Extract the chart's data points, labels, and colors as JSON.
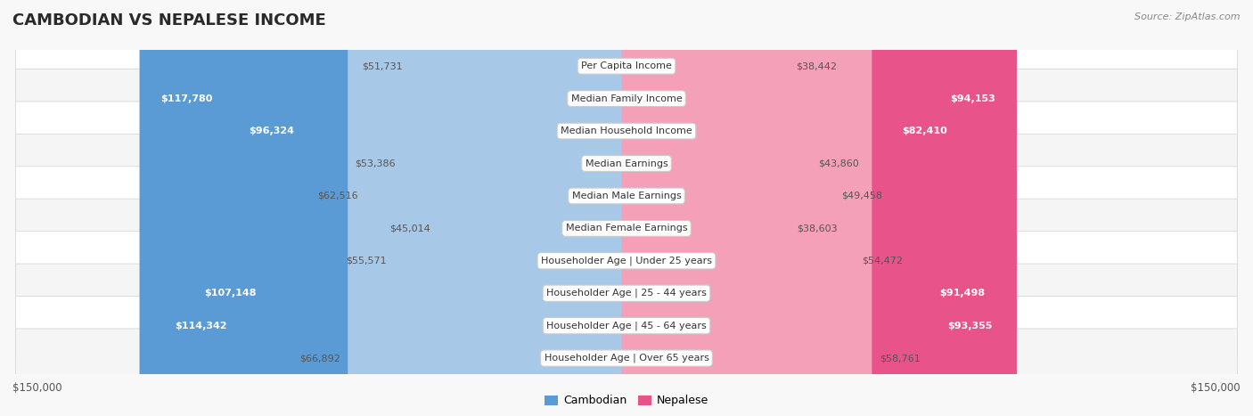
{
  "title": "CAMBODIAN VS NEPALESE INCOME",
  "source": "Source: ZipAtlas.com",
  "max_value": 150000,
  "categories": [
    "Per Capita Income",
    "Median Family Income",
    "Median Household Income",
    "Median Earnings",
    "Median Male Earnings",
    "Median Female Earnings",
    "Householder Age | Under 25 years",
    "Householder Age | 25 - 44 years",
    "Householder Age | 45 - 64 years",
    "Householder Age | Over 65 years"
  ],
  "cambodian_values": [
    51731,
    117780,
    96324,
    53386,
    62516,
    45014,
    55571,
    107148,
    114342,
    66892
  ],
  "nepalese_values": [
    38442,
    94153,
    82410,
    43860,
    49458,
    38603,
    54472,
    91498,
    93355,
    58761
  ],
  "cambodian_color_light": "#a8c8e8",
  "cambodian_color_dark": "#5b9bd5",
  "nepalese_color_light": "#f4a0b8",
  "nepalese_color_dark": "#e8538a",
  "bg_color": "#f8f8f8",
  "row_bg_even": "#f5f5f5",
  "row_bg_odd": "#ffffff",
  "row_border": "#d8d8d8",
  "label_bg": "#ffffff",
  "label_border": "#cccccc",
  "title_color": "#2a2a2a",
  "value_text_outside": "#555555",
  "value_text_inside": "#ffffff",
  "threshold_white_text": 75000,
  "bottom_label_color": "#555555",
  "legend_cam_color": "#5b9bd5",
  "legend_nep_color": "#e8538a"
}
